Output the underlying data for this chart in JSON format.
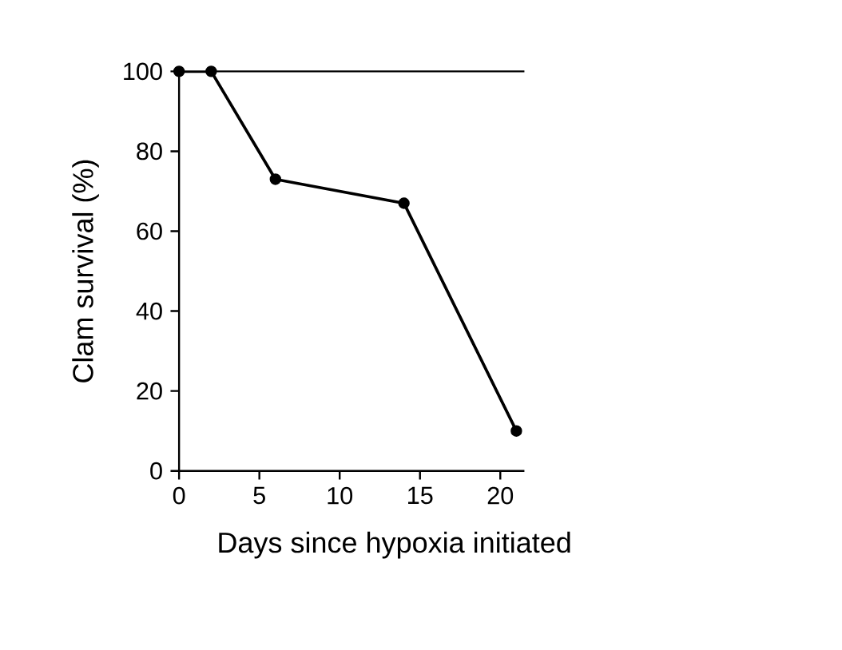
{
  "chart_data": {
    "type": "line",
    "xlabel": "Days since hypoxia initiated",
    "ylabel": "Clam survival (%)",
    "x": [
      0,
      2,
      6,
      14,
      21
    ],
    "series": [
      {
        "color": "#000000",
        "values": [
          100,
          100,
          73,
          67,
          10
        ]
      }
    ],
    "xlim": [
      0,
      21.5
    ],
    "ylim": [
      0,
      100
    ],
    "xticks": [
      0,
      5,
      10,
      15,
      20
    ],
    "yticks": [
      0,
      20,
      40,
      60,
      80,
      100
    ],
    "marker": "circle",
    "line_style": "solid"
  }
}
